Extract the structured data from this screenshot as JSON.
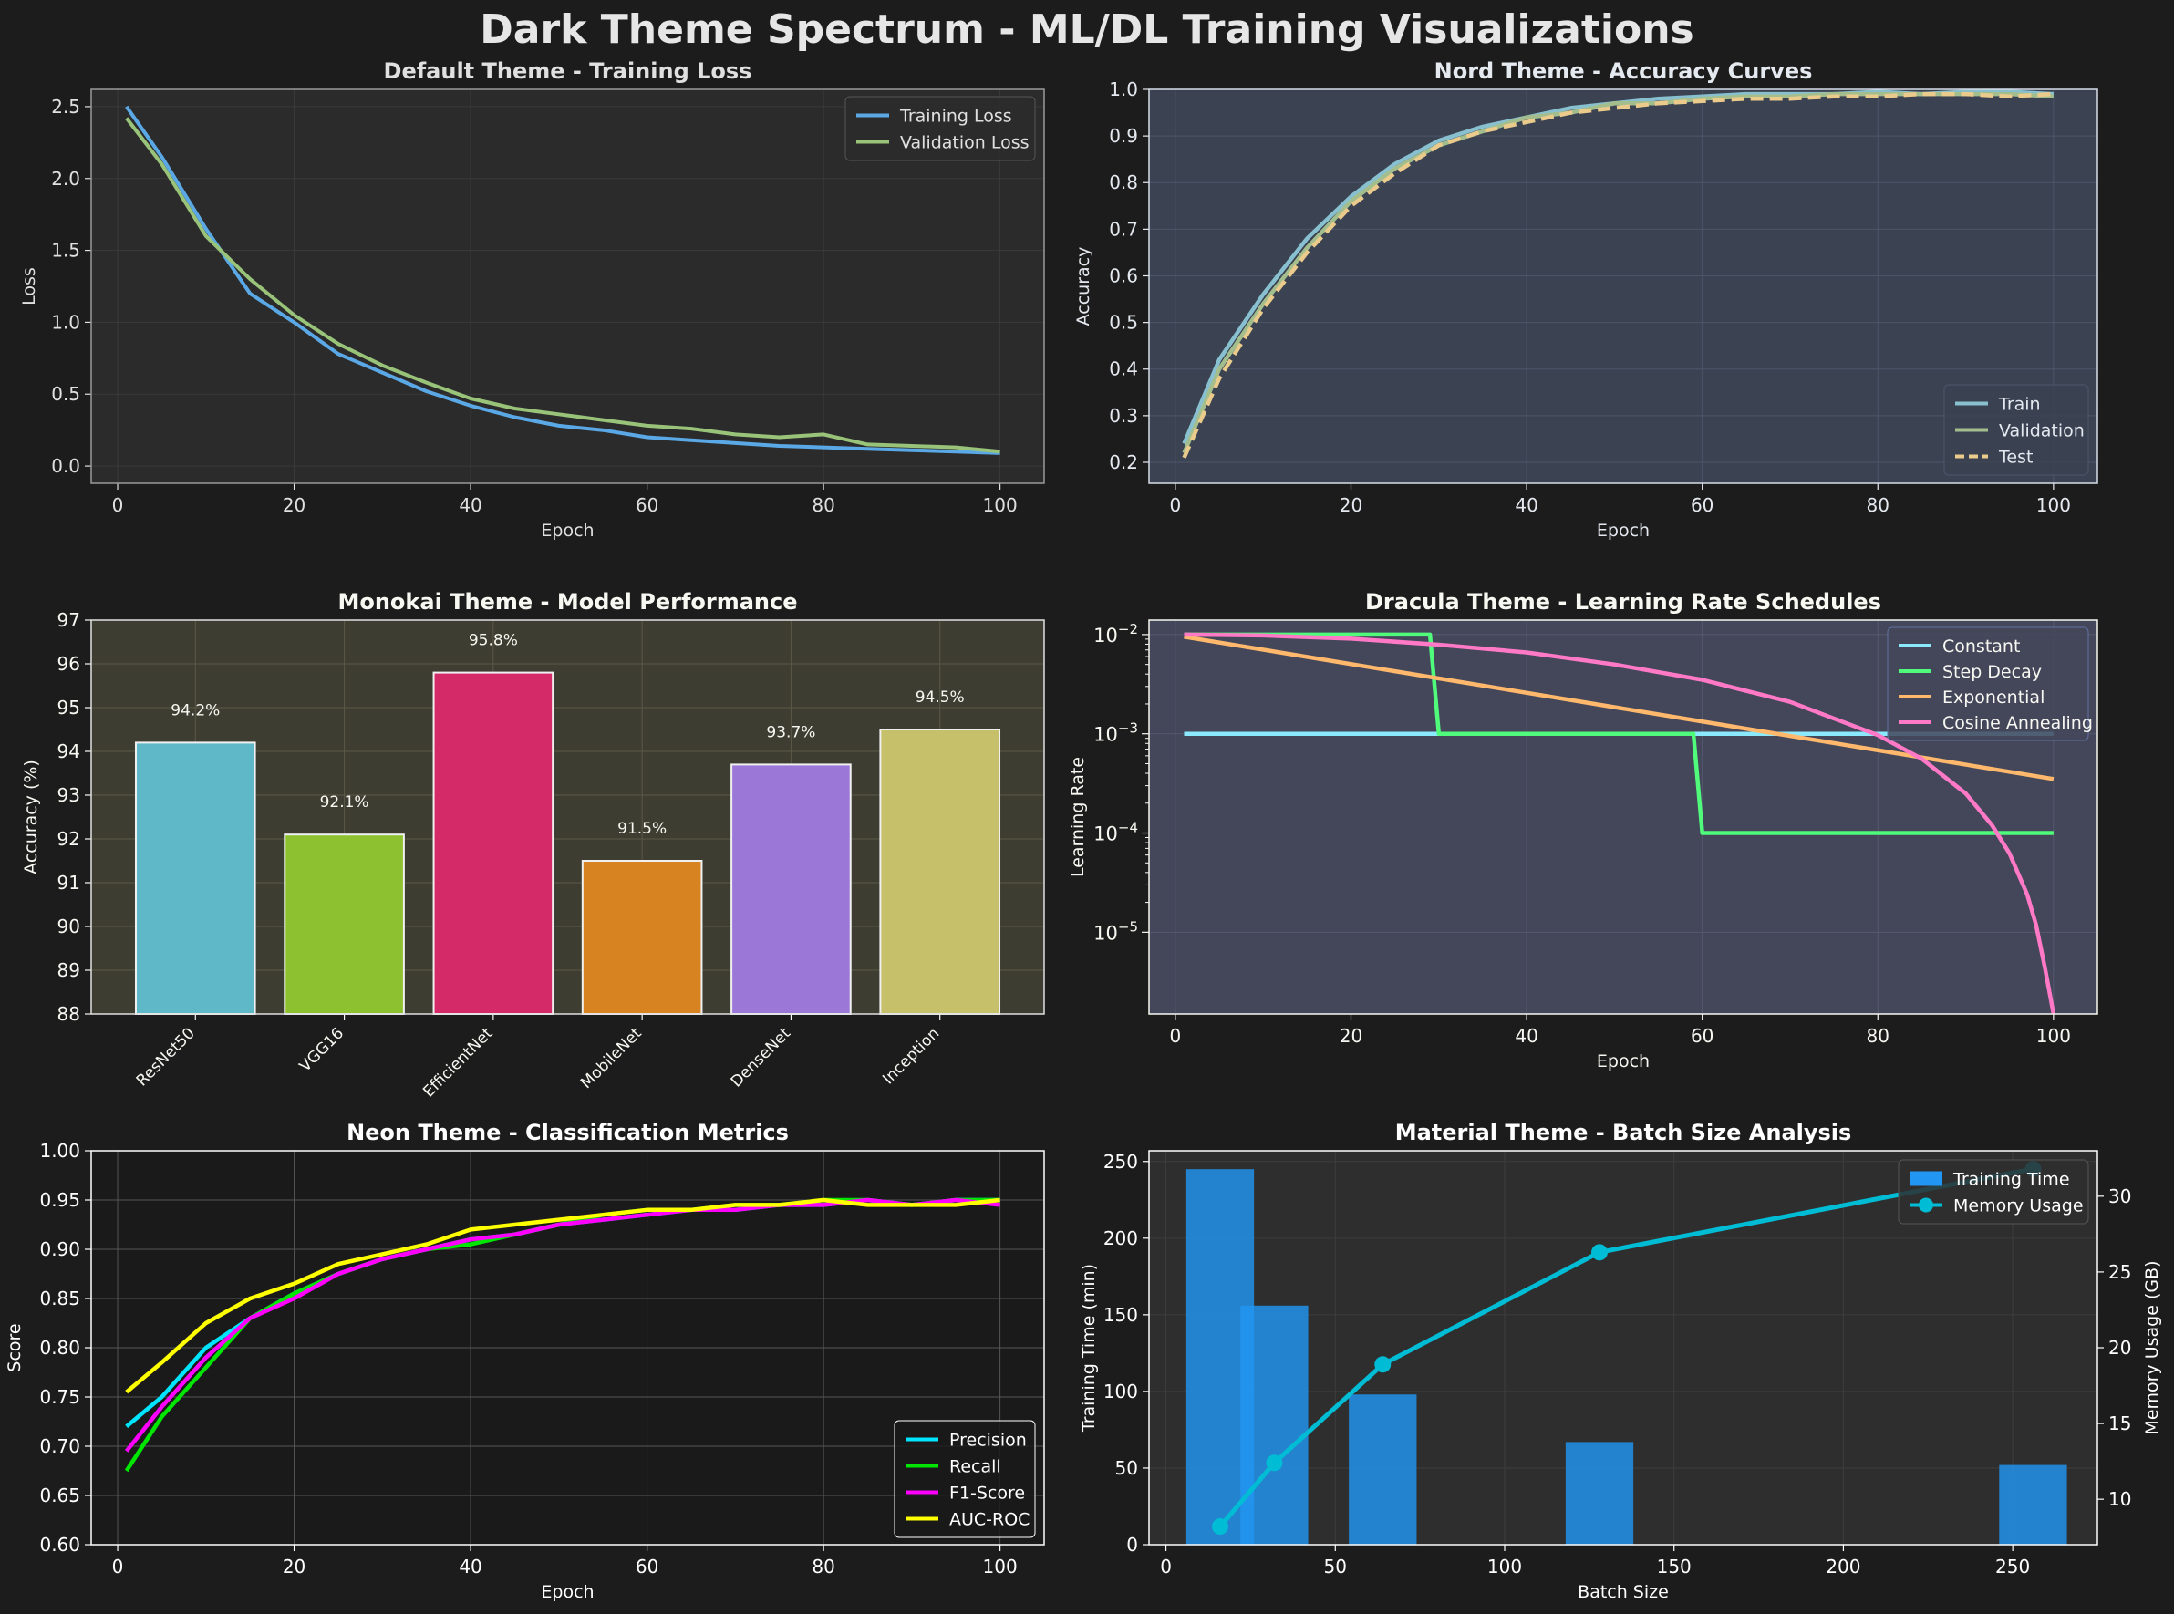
{
  "figure": {
    "title": "Dark Theme Spectrum - ML/DL Training Visualizations"
  },
  "chart_data": [
    {
      "id": "loss",
      "type": "line",
      "title": "Default Theme - Training Loss",
      "xlabel": "Epoch",
      "ylabel": "Loss",
      "xlim": [
        -3,
        105
      ],
      "ylim": [
        -0.12,
        2.62
      ],
      "xticks": [
        0,
        20,
        40,
        60,
        80,
        100
      ],
      "yticks": [
        0.0,
        0.5,
        1.0,
        1.5,
        2.0,
        2.5
      ],
      "ytick_labels": [
        "0.0",
        "0.5",
        "1.0",
        "1.5",
        "2.0",
        "2.5"
      ],
      "legend": "top-right",
      "colors": {
        "background": "#2b2b2b",
        "text": "#e0e0e0"
      },
      "series": [
        {
          "name": "Training Loss",
          "color": "#5aa9e6",
          "style": "solid",
          "x": [
            1,
            5,
            10,
            15,
            20,
            25,
            30,
            35,
            40,
            45,
            50,
            55,
            60,
            65,
            70,
            75,
            80,
            85,
            90,
            95,
            100
          ],
          "y": [
            2.5,
            2.15,
            1.65,
            1.2,
            1.0,
            0.78,
            0.65,
            0.52,
            0.42,
            0.34,
            0.28,
            0.25,
            0.2,
            0.18,
            0.16,
            0.14,
            0.13,
            0.12,
            0.11,
            0.1,
            0.09
          ]
        },
        {
          "name": "Validation Loss",
          "color": "#98c379",
          "style": "solid",
          "x": [
            1,
            5,
            10,
            15,
            20,
            25,
            30,
            35,
            40,
            45,
            50,
            55,
            60,
            65,
            70,
            75,
            80,
            85,
            90,
            95,
            100
          ],
          "y": [
            2.42,
            2.1,
            1.6,
            1.3,
            1.05,
            0.85,
            0.7,
            0.58,
            0.47,
            0.4,
            0.36,
            0.32,
            0.28,
            0.26,
            0.22,
            0.2,
            0.22,
            0.15,
            0.14,
            0.13,
            0.1
          ]
        }
      ]
    },
    {
      "id": "accuracy",
      "type": "line",
      "title": "Nord Theme - Accuracy Curves",
      "xlabel": "Epoch",
      "ylabel": "Accuracy",
      "xlim": [
        -3,
        105
      ],
      "ylim": [
        0.155,
        1.0
      ],
      "xticks": [
        0,
        20,
        40,
        60,
        80,
        100
      ],
      "yticks": [
        0.2,
        0.3,
        0.4,
        0.5,
        0.6,
        0.7,
        0.8,
        0.9,
        1.0
      ],
      "ytick_labels": [
        "0.2",
        "0.3",
        "0.4",
        "0.5",
        "0.6",
        "0.7",
        "0.8",
        "0.9",
        "1.0"
      ],
      "legend": "bottom-right",
      "colors": {
        "background": "#3b4252",
        "text": "#e5e9f0"
      },
      "series": [
        {
          "name": "Train",
          "color": "#88c0d0",
          "style": "solid",
          "x": [
            1,
            5,
            10,
            15,
            20,
            25,
            30,
            35,
            40,
            45,
            50,
            55,
            60,
            65,
            70,
            75,
            80,
            85,
            90,
            95,
            100
          ],
          "y": [
            0.24,
            0.42,
            0.56,
            0.68,
            0.77,
            0.84,
            0.89,
            0.92,
            0.94,
            0.96,
            0.97,
            0.98,
            0.985,
            0.99,
            0.99,
            0.99,
            0.995,
            0.99,
            0.995,
            0.995,
            0.99
          ]
        },
        {
          "name": "Validation",
          "color": "#a3be8c",
          "style": "solid",
          "x": [
            1,
            5,
            10,
            15,
            20,
            25,
            30,
            35,
            40,
            45,
            50,
            55,
            60,
            65,
            70,
            75,
            80,
            85,
            90,
            95,
            100
          ],
          "y": [
            0.22,
            0.4,
            0.54,
            0.66,
            0.76,
            0.83,
            0.88,
            0.91,
            0.94,
            0.95,
            0.97,
            0.97,
            0.98,
            0.985,
            0.985,
            0.99,
            0.99,
            0.99,
            0.99,
            0.99,
            0.985
          ]
        },
        {
          "name": "Test",
          "color": "#ebcb8b",
          "style": "dashed",
          "x": [
            1,
            5,
            10,
            15,
            20,
            25,
            30,
            35,
            40,
            45,
            50,
            55,
            60,
            65,
            70,
            75,
            80,
            85,
            90,
            95,
            100
          ],
          "y": [
            0.21,
            0.38,
            0.53,
            0.65,
            0.75,
            0.82,
            0.88,
            0.91,
            0.93,
            0.95,
            0.96,
            0.97,
            0.975,
            0.98,
            0.98,
            0.985,
            0.985,
            0.99,
            0.99,
            0.985,
            0.99
          ]
        }
      ]
    },
    {
      "id": "performance",
      "type": "bar",
      "title": "Monokai Theme - Model Performance",
      "xlabel": "",
      "ylabel": "Accuracy (%)",
      "ylim": [
        88,
        97
      ],
      "yticks": [
        88,
        89,
        90,
        91,
        92,
        93,
        94,
        95,
        96,
        97
      ],
      "ytick_labels": [
        "88",
        "89",
        "90",
        "91",
        "92",
        "93",
        "94",
        "95",
        "96",
        "97"
      ],
      "colors": {
        "background": "#3e3d32",
        "text": "#f8f8f2"
      },
      "categories": [
        "ResNet50",
        "VGG16",
        "EfficientNet",
        "MobileNet",
        "DenseNet",
        "Inception"
      ],
      "values": [
        94.2,
        92.1,
        95.8,
        91.5,
        93.7,
        94.5
      ],
      "value_labels": [
        "94.2%",
        "92.1%",
        "95.8%",
        "91.5%",
        "93.7%",
        "94.5%"
      ],
      "bar_colors": [
        "#5fb8c8",
        "#8ec12f",
        "#d42a68",
        "#d88321",
        "#9b78d8",
        "#c7c06a"
      ]
    },
    {
      "id": "lr",
      "type": "line",
      "title": "Dracula Theme - Learning Rate Schedules",
      "xlabel": "Epoch",
      "ylabel": "Learning Rate",
      "xlim": [
        -3,
        105
      ],
      "yscale": "log",
      "ylim": [
        1.5e-06,
        0.014
      ],
      "xticks": [
        0,
        20,
        40,
        60,
        80,
        100
      ],
      "ytick_exponents": [
        "-2",
        "-3",
        "-4",
        "-5"
      ],
      "ytick_values": [
        0.01,
        0.001,
        0.0001,
        1e-05
      ],
      "legend": "top-right",
      "colors": {
        "background": "#44475a",
        "text": "#f8f8f2"
      },
      "series": [
        {
          "name": "Constant",
          "color": "#8be9fd",
          "x": [
            1,
            100
          ],
          "y": [
            0.001,
            0.001
          ]
        },
        {
          "name": "Step Decay",
          "color": "#50fa7b",
          "x": [
            1,
            29,
            30,
            59,
            60,
            100
          ],
          "y": [
            0.01,
            0.01,
            0.001,
            0.001,
            0.0001,
            0.0001
          ]
        },
        {
          "name": "Exponential",
          "color": "#ffb86c",
          "x": [
            1,
            100
          ],
          "y": [
            0.0095,
            0.00035
          ]
        },
        {
          "name": "Cosine Annealing",
          "color": "#ff79c6",
          "x": [
            1,
            10,
            20,
            30,
            40,
            50,
            60,
            70,
            80,
            85,
            90,
            93,
            95,
            97,
            98,
            99,
            100
          ],
          "y": [
            0.01,
            0.0098,
            0.0091,
            0.0079,
            0.0066,
            0.005,
            0.0035,
            0.0021,
            0.00097,
            0.00056,
            0.00025,
            0.00012,
            6.2e-05,
            2.4e-05,
            1.2e-05,
            4.5e-06,
            1.5e-06
          ]
        }
      ]
    },
    {
      "id": "metrics",
      "type": "line",
      "title": "Neon Theme - Classification Metrics",
      "xlabel": "Epoch",
      "ylabel": "Score",
      "xlim": [
        -3,
        105
      ],
      "ylim": [
        0.6,
        1.0
      ],
      "xticks": [
        0,
        20,
        40,
        60,
        80,
        100
      ],
      "yticks": [
        0.6,
        0.65,
        0.7,
        0.75,
        0.8,
        0.85,
        0.9,
        0.95,
        1.0
      ],
      "ytick_labels": [
        "0.60",
        "0.65",
        "0.70",
        "0.75",
        "0.80",
        "0.85",
        "0.90",
        "0.95",
        "1.00"
      ],
      "legend": "bottom-right",
      "colors": {
        "background": "#1a1a1a",
        "text": "#ffffff"
      },
      "series": [
        {
          "name": "Precision",
          "color": "#00e5ff",
          "x": [
            1,
            5,
            10,
            15,
            20,
            25,
            30,
            35,
            40,
            45,
            50,
            55,
            60,
            65,
            70,
            75,
            80,
            85,
            90,
            95,
            100
          ],
          "y": [
            0.72,
            0.75,
            0.8,
            0.83,
            0.855,
            0.875,
            0.89,
            0.9,
            0.91,
            0.915,
            0.925,
            0.93,
            0.935,
            0.94,
            0.94,
            0.945,
            0.945,
            0.95,
            0.945,
            0.95,
            0.95
          ]
        },
        {
          "name": "Recall",
          "color": "#00e600",
          "x": [
            1,
            5,
            10,
            15,
            20,
            25,
            30,
            35,
            40,
            45,
            50,
            55,
            60,
            65,
            70,
            75,
            80,
            85,
            90,
            95,
            100
          ],
          "y": [
            0.675,
            0.73,
            0.78,
            0.83,
            0.855,
            0.875,
            0.89,
            0.9,
            0.905,
            0.915,
            0.925,
            0.935,
            0.94,
            0.94,
            0.945,
            0.945,
            0.95,
            0.95,
            0.945,
            0.95,
            0.95
          ]
        },
        {
          "name": "F1-Score",
          "color": "#ff00ff",
          "x": [
            1,
            5,
            10,
            15,
            20,
            25,
            30,
            35,
            40,
            45,
            50,
            55,
            60,
            65,
            70,
            75,
            80,
            85,
            90,
            95,
            100
          ],
          "y": [
            0.695,
            0.74,
            0.79,
            0.83,
            0.85,
            0.875,
            0.89,
            0.9,
            0.91,
            0.915,
            0.925,
            0.93,
            0.935,
            0.94,
            0.94,
            0.945,
            0.945,
            0.95,
            0.945,
            0.95,
            0.945
          ]
        },
        {
          "name": "AUC-ROC",
          "color": "#ffff00",
          "x": [
            1,
            5,
            10,
            15,
            20,
            25,
            30,
            35,
            40,
            45,
            50,
            55,
            60,
            65,
            70,
            75,
            80,
            85,
            90,
            95,
            100
          ],
          "y": [
            0.755,
            0.785,
            0.825,
            0.85,
            0.865,
            0.885,
            0.895,
            0.905,
            0.92,
            0.925,
            0.93,
            0.935,
            0.94,
            0.94,
            0.945,
            0.945,
            0.95,
            0.945,
            0.945,
            0.945,
            0.95
          ]
        }
      ]
    },
    {
      "id": "batch",
      "type": "bar",
      "title": "Material Theme - Batch Size Analysis",
      "xlabel": "Batch Size",
      "ylabel": "Training Time (min)",
      "y2label": "Memory Usage (GB)",
      "xlim": [
        -5,
        275
      ],
      "ylim": [
        0,
        257
      ],
      "y2lim": [
        7,
        33
      ],
      "xticks": [
        0,
        50,
        100,
        150,
        200,
        250
      ],
      "yticks": [
        0,
        50,
        100,
        150,
        200,
        250
      ],
      "y2ticks": [
        10,
        15,
        20,
        25,
        30
      ],
      "legend": "top-right",
      "colors": {
        "background": "#2e2e2e",
        "text": "#ffffff"
      },
      "series": [
        {
          "name": "Training Time",
          "type": "bar",
          "color": "#2196f3",
          "x": [
            16,
            32,
            64,
            128,
            256
          ],
          "values": [
            245,
            156,
            98,
            67,
            52
          ]
        },
        {
          "name": "Memory Usage",
          "type": "line",
          "color": "#00bcd4",
          "x": [
            16,
            32,
            64,
            128,
            256
          ],
          "values": [
            8.2,
            12.4,
            18.9,
            26.3,
            31.8
          ]
        }
      ]
    }
  ]
}
